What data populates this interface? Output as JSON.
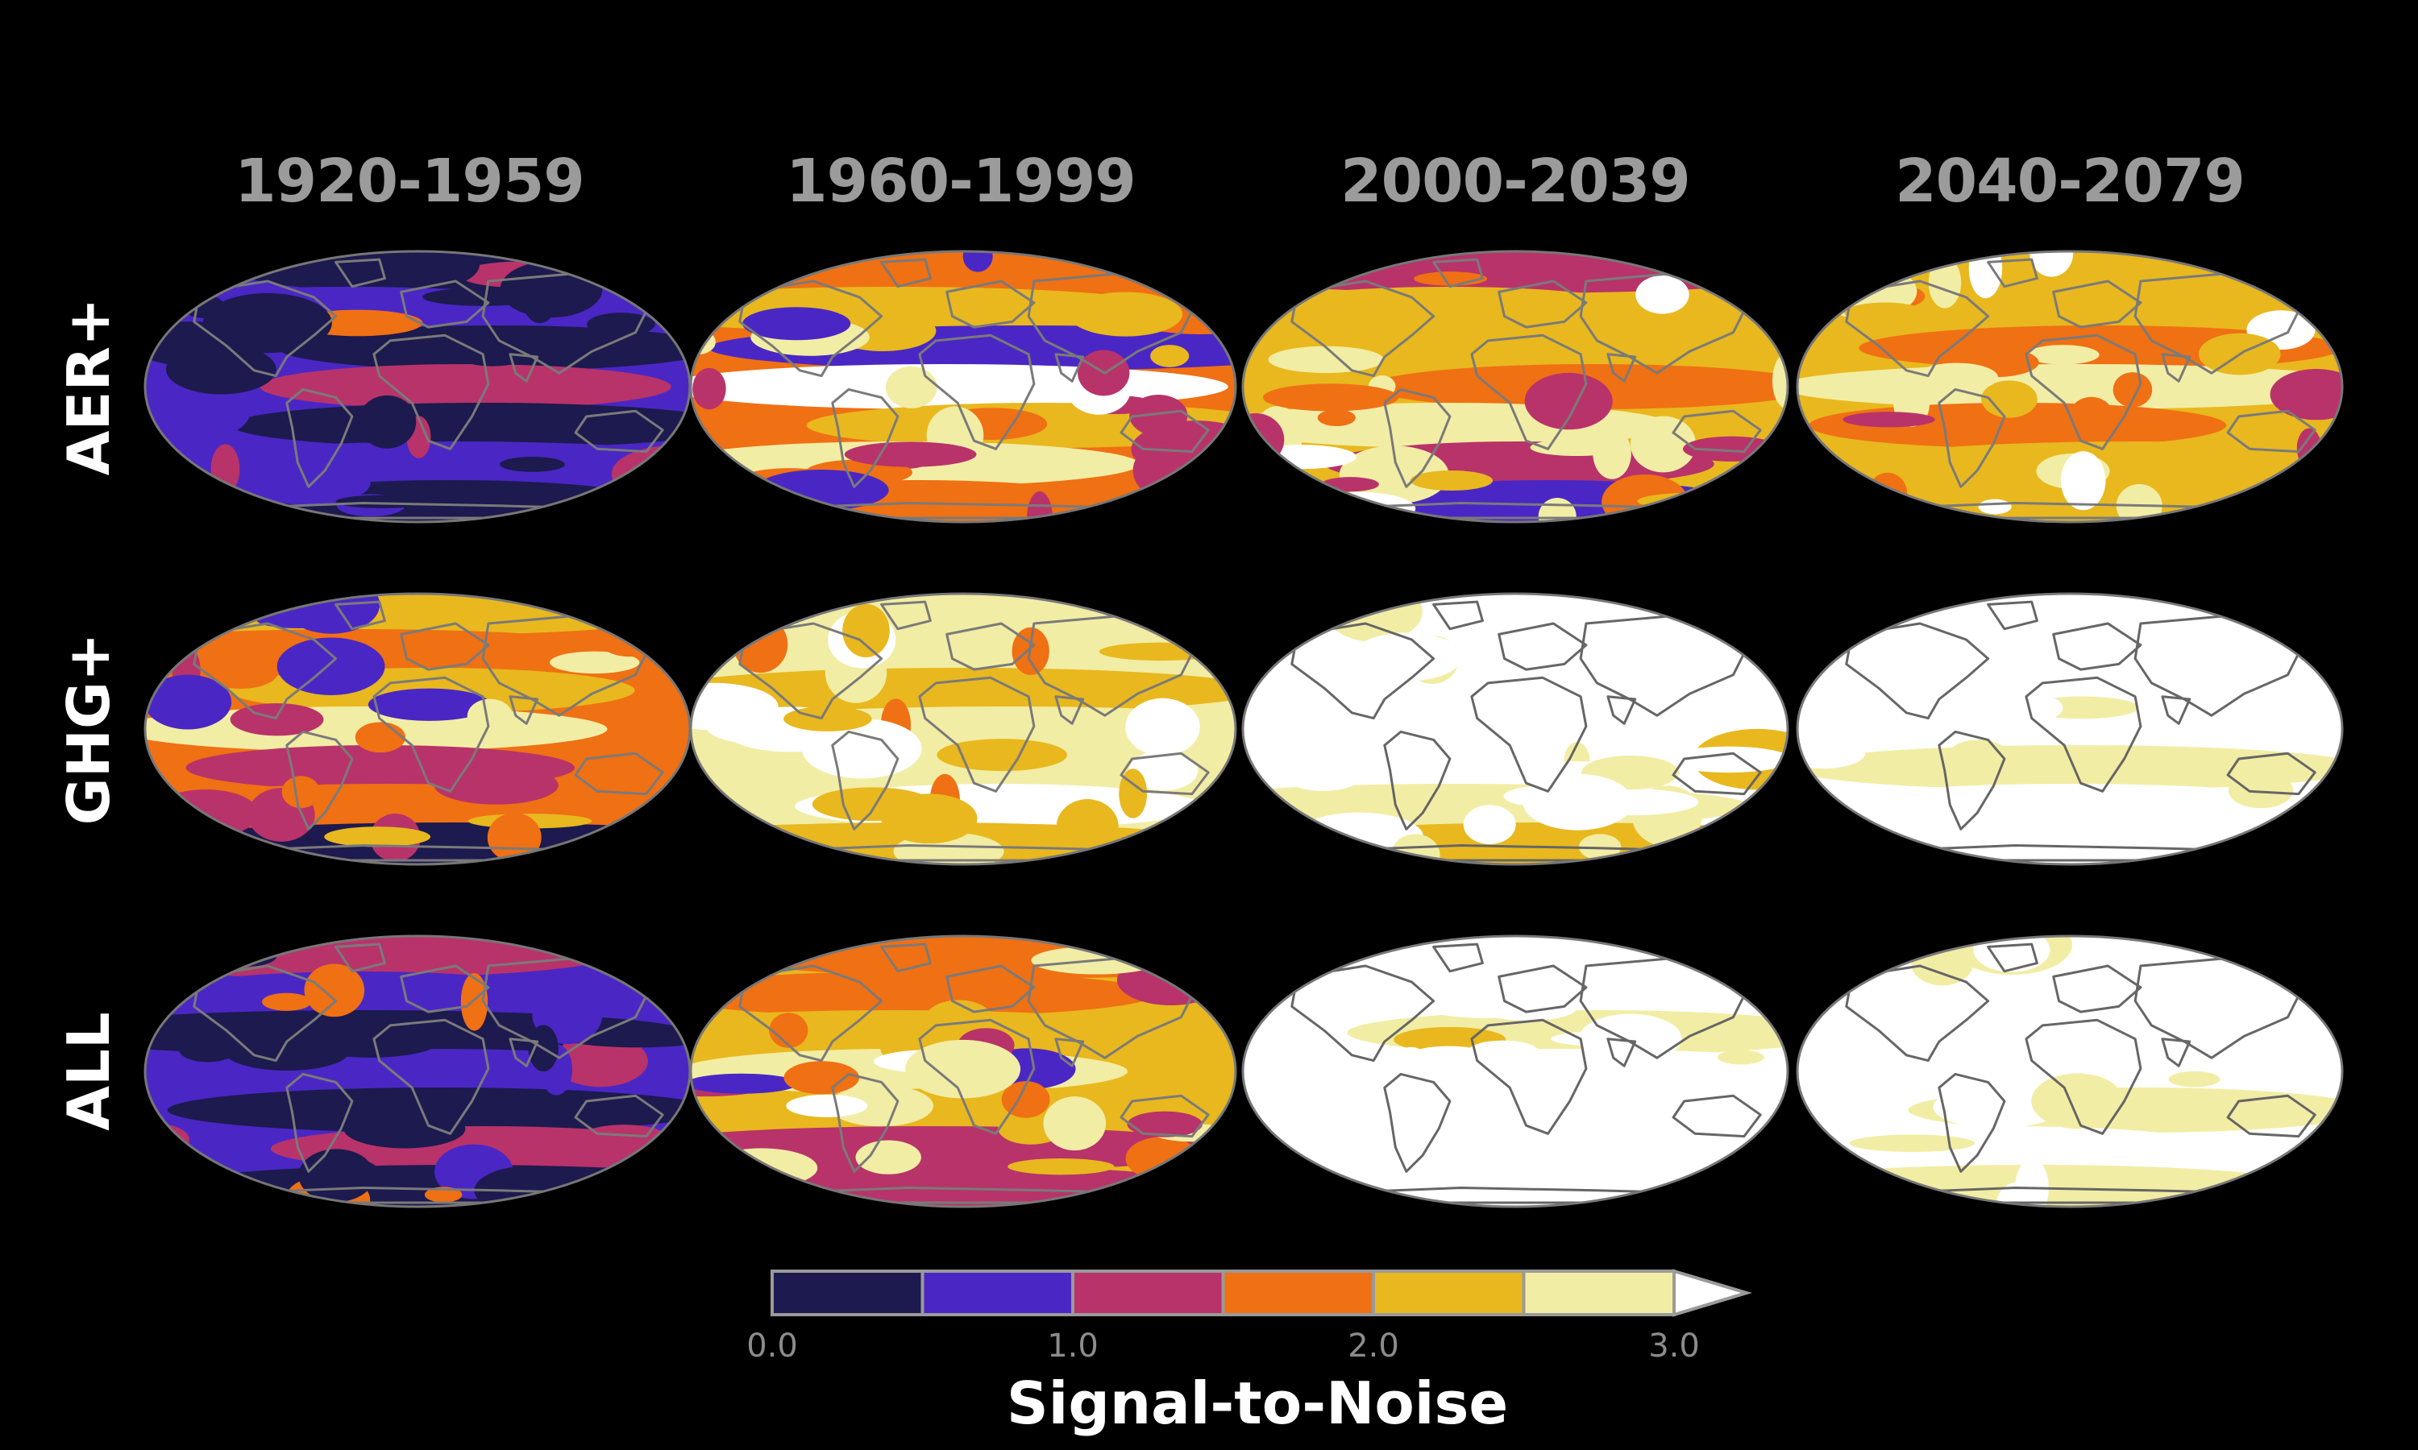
{
  "chart_data": {
    "type": "heatmap",
    "projection": "Mollweide (global maps)",
    "columns": [
      "1920-1959",
      "1960-1999",
      "2000-2039",
      "2040-2079"
    ],
    "rows": [
      "AER+",
      "GHG+",
      "ALL"
    ],
    "colorbar": {
      "label": "Signal-to-Noise",
      "ticks": [
        "0.0",
        "1.0",
        "2.0",
        "3.0"
      ],
      "bins": [
        0.0,
        0.5,
        1.0,
        1.5,
        2.0,
        2.5,
        3.0
      ],
      "colors": [
        "#1c1a4e",
        "#4a27c4",
        "#b8336a",
        "#f07014",
        "#e8b81e",
        "#f2eda4"
      ],
      "over_color": "#ffffff",
      "extend": "max"
    },
    "panels": [
      {
        "row": "AER+",
        "period": "1920-1959",
        "typical_level": 0.6
      },
      {
        "row": "AER+",
        "period": "1960-1999",
        "typical_level": 1.9
      },
      {
        "row": "AER+",
        "period": "2000-2039",
        "typical_level": 2.0
      },
      {
        "row": "AER+",
        "period": "2040-2079",
        "typical_level": 2.3
      },
      {
        "row": "GHG+",
        "period": "1920-1959",
        "typical_level": 1.7
      },
      {
        "row": "GHG+",
        "period": "1960-1999",
        "typical_level": 2.8
      },
      {
        "row": "GHG+",
        "period": "2000-2039",
        "typical_level": 3.5
      },
      {
        "row": "GHG+",
        "period": "2040-2079",
        "typical_level": 3.8
      },
      {
        "row": "ALL",
        "period": "1920-1959",
        "typical_level": 0.8
      },
      {
        "row": "ALL",
        "period": "1960-1999",
        "typical_level": 2.1
      },
      {
        "row": "ALL",
        "period": "2000-2039",
        "typical_level": 3.5
      },
      {
        "row": "ALL",
        "period": "2040-2079",
        "typical_level": 3.8
      }
    ]
  }
}
